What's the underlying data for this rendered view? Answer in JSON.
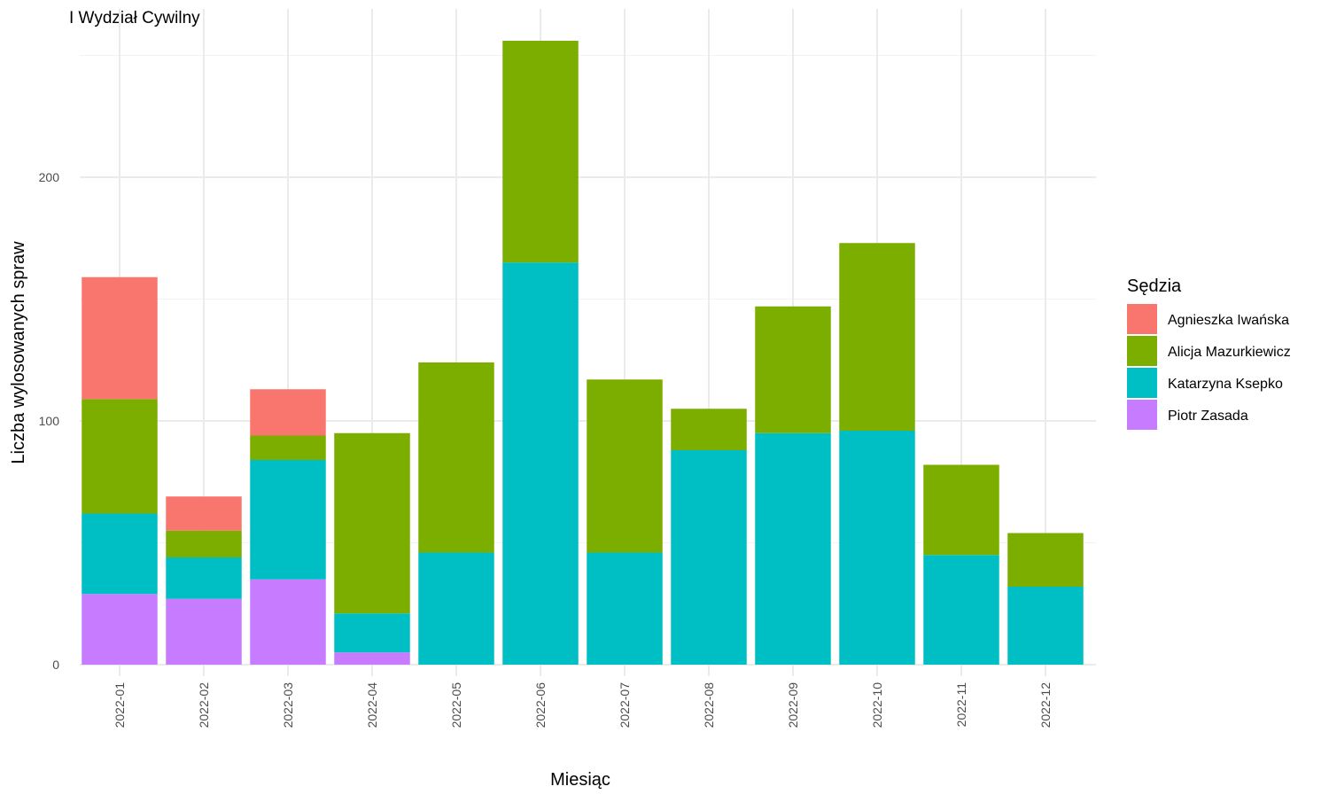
{
  "chart_data": {
    "type": "bar",
    "stacked": true,
    "title": "I Wydział Cywilny",
    "xlabel": "Miesiąc",
    "ylabel": "Liczba wylosowanych spraw",
    "ylim": [
      0,
      256
    ],
    "yticks": [
      0,
      100,
      200
    ],
    "grid": true,
    "legend_title": "Sędzia",
    "legend_position": "right",
    "categories": [
      "2022-01",
      "2022-02",
      "2022-03",
      "2022-04",
      "2022-05",
      "2022-06",
      "2022-07",
      "2022-08",
      "2022-09",
      "2022-10",
      "2022-11",
      "2022-12"
    ],
    "series": [
      {
        "name": "Piotr Zasada",
        "color": "#C77CFF",
        "values": [
          29,
          27,
          35,
          5,
          0,
          0,
          0,
          0,
          0,
          0,
          0,
          0
        ]
      },
      {
        "name": "Katarzyna Ksepko",
        "color": "#00BFC4",
        "values": [
          33,
          17,
          49,
          16,
          46,
          165,
          46,
          88,
          95,
          96,
          45,
          32
        ]
      },
      {
        "name": "Alicja Mazurkiewicz",
        "color": "#7CAE00",
        "values": [
          47,
          11,
          10,
          74,
          78,
          91,
          71,
          17,
          52,
          77,
          37,
          22
        ]
      },
      {
        "name": "Agnieszka Iwańska",
        "color": "#F8766D",
        "values": [
          50,
          14,
          19,
          0,
          0,
          0,
          0,
          0,
          0,
          0,
          0,
          0
        ]
      }
    ],
    "legend_order": [
      "Agnieszka Iwańska",
      "Alicja Mazurkiewicz",
      "Katarzyna Ksepko",
      "Piotr Zasada"
    ]
  }
}
